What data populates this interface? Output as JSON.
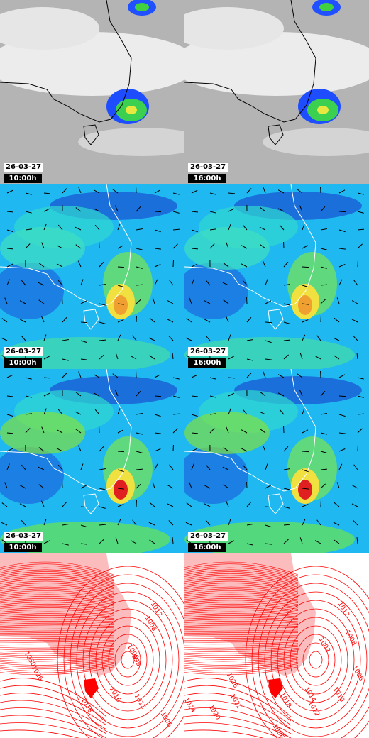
{
  "panels": [
    {
      "date": "26-03-27",
      "time": "10:00h"
    },
    {
      "date": "26-03-27",
      "time": "16:00h"
    },
    {
      "date": "26-03-27",
      "time": "10:00h"
    },
    {
      "date": "26-03-27",
      "time": "16:00h"
    },
    {
      "date": "26-03-27",
      "time": "10:00h"
    },
    {
      "date": "26-03-27",
      "time": "16:00h"
    }
  ],
  "pressure_panels": [
    {
      "labels": [
        "1012",
        "1008",
        "1000",
        "998",
        "1030",
        "1026",
        "1018",
        "1016",
        "1012",
        "1006"
      ]
    },
    {
      "labels": [
        "1012",
        "1008",
        "1002",
        "1026",
        "1024",
        "1022",
        "1020",
        "1018",
        "1014",
        "1012",
        "1010",
        "1006",
        "1006"
      ]
    }
  ]
}
